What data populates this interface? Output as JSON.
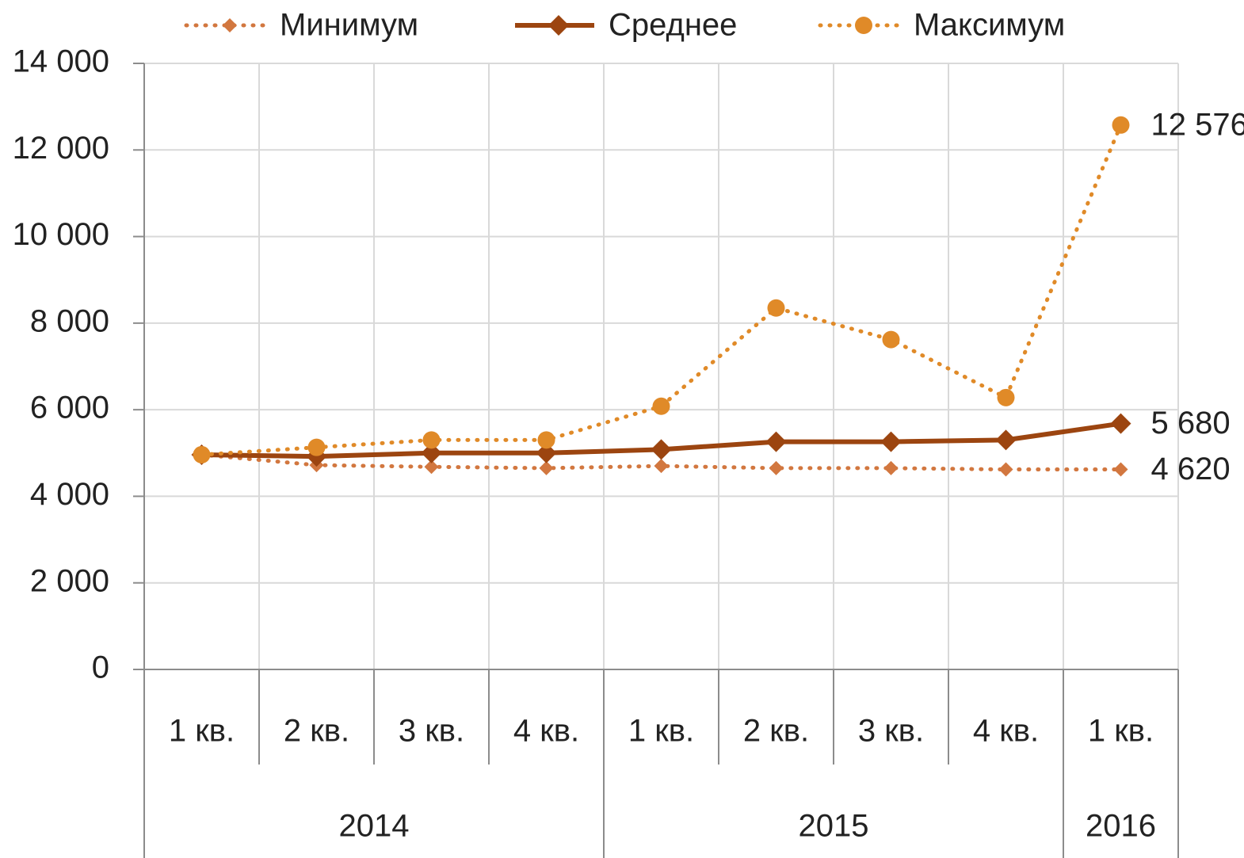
{
  "chart_data": {
    "type": "line",
    "categories": [
      "1 кв.",
      "2 кв.",
      "3 кв.",
      "4 кв.",
      "1 кв.",
      "2 кв.",
      "3 кв.",
      "4 кв.",
      "1 кв."
    ],
    "groups": [
      {
        "label": "2014",
        "count": 4
      },
      {
        "label": "2015",
        "count": 4
      },
      {
        "label": "2016",
        "count": 1
      }
    ],
    "series": [
      {
        "name": "Минимум",
        "color": "#d2773f",
        "style": "dotted",
        "marker": "diamond",
        "values": [
          4960,
          4720,
          4680,
          4650,
          4700,
          4650,
          4650,
          4620,
          4620
        ],
        "value_labels": [
          null,
          null,
          null,
          null,
          null,
          null,
          null,
          null,
          "4 620"
        ]
      },
      {
        "name": "Среднее",
        "color": "#9c4510",
        "style": "solid",
        "marker": "diamond",
        "values": [
          4960,
          4920,
          5000,
          5000,
          5080,
          5260,
          5260,
          5300,
          5680
        ],
        "value_labels": [
          null,
          null,
          null,
          null,
          null,
          null,
          null,
          null,
          "5 680"
        ]
      },
      {
        "name": "Максимум",
        "color": "#e08a28",
        "style": "dotted",
        "marker": "circle",
        "values": [
          4960,
          5130,
          5300,
          5300,
          6080,
          8350,
          7620,
          6280,
          12576
        ],
        "value_labels": [
          null,
          null,
          null,
          null,
          null,
          null,
          null,
          null,
          "12 576"
        ]
      }
    ],
    "ylim": [
      0,
      14000
    ],
    "yticks": [
      0,
      {
        "value": 2000,
        "label": "2 000"
      },
      {
        "value": 4000,
        "label": "4 000"
      },
      {
        "value": 6000,
        "label": "6 000"
      },
      {
        "value": 8000,
        "label": "8 000"
      },
      {
        "value": 10000,
        "label": "10 000"
      },
      {
        "value": 12000,
        "label": "12 000"
      },
      {
        "value": 14000,
        "label": "14 000"
      }
    ],
    "grid": true,
    "legend": "top"
  }
}
